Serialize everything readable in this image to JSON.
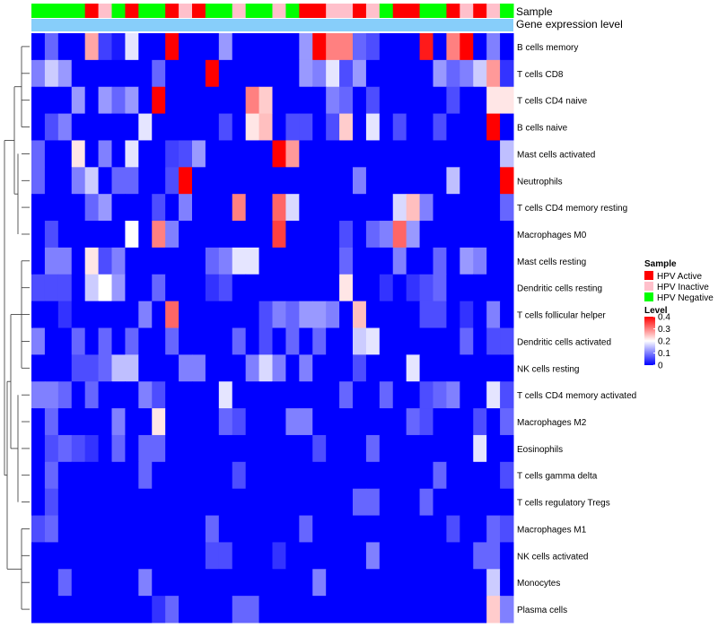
{
  "chart_data": {
    "type": "heatmap",
    "title": "",
    "annotation_rows": [
      "Sample",
      "Gene expression level"
    ],
    "legend_sample": {
      "title": "Sample",
      "entries": [
        {
          "label": "HPV Active",
          "color": "#ff0000"
        },
        {
          "label": "HPV Inactive",
          "color": "#ffc0cb"
        },
        {
          "label": "HPV Negative",
          "color": "#00ff00"
        }
      ]
    },
    "legend_level": {
      "title": "Level",
      "ticks": [
        "0.4",
        "0.3",
        "0.2",
        "0.1",
        "0"
      ],
      "tick_values": [
        0.4,
        0.3,
        0.2,
        0.1,
        0
      ],
      "range": [
        0,
        0.4
      ],
      "colors": {
        "low": "#0000ff",
        "mid": "#ffffff",
        "high": "#ff0000"
      }
    },
    "gene_expression_bar_color": "#87cefa",
    "sample_groups": [
      "N",
      "N",
      "N",
      "N",
      "A",
      "I",
      "N",
      "A",
      "N",
      "N",
      "A",
      "I",
      "A",
      "N",
      "N",
      "I",
      "N",
      "N",
      "I",
      "N",
      "A",
      "A",
      "I",
      "I",
      "A",
      "I",
      "N",
      "A",
      "A",
      "N",
      "N",
      "A",
      "I",
      "A",
      "I",
      "N"
    ],
    "rows": [
      "B cells memory",
      "T cells CD8",
      "T cells CD4 naive",
      "B cells naive",
      "Mast cells activated",
      "Neutrophils",
      "T cells CD4 memory resting",
      "Macrophages M0",
      "Mast cells resting",
      "Dendritic cells resting",
      "T cells follicular helper",
      "Dendritic cells activated",
      "NK cells resting",
      "T cells CD4 memory activated",
      "Macrophages M2",
      "Eosinophils",
      "T cells gamma delta",
      "T cells regulatory  Tregs",
      "Macrophages M1",
      "NK cells activated",
      "Monocytes",
      "Plasma cells"
    ],
    "values": [
      [
        0.0,
        0.08,
        0.0,
        0.0,
        0.27,
        0.05,
        0.02,
        0.18,
        0.0,
        0.0,
        0.4,
        0.0,
        0.0,
        0.0,
        0.12,
        0.0,
        0.0,
        0.0,
        0.0,
        0.0,
        0.12,
        0.4,
        0.3,
        0.3,
        0.08,
        0.06,
        0.0,
        0.0,
        0.0,
        0.38,
        0.0,
        0.3,
        0.4,
        0.0,
        0.1,
        0.0
      ],
      [
        0.1,
        0.16,
        0.12,
        0.0,
        0.0,
        0.0,
        0.0,
        0.0,
        0.0,
        0.08,
        0.0,
        0.0,
        0.0,
        0.4,
        0.0,
        0.0,
        0.0,
        0.0,
        0.0,
        0.0,
        0.12,
        0.1,
        0.18,
        0.06,
        0.12,
        0.0,
        0.0,
        0.0,
        0.0,
        0.0,
        0.12,
        0.08,
        0.1,
        0.16,
        0.28,
        0.04
      ],
      [
        0.0,
        0.0,
        0.0,
        0.12,
        0.0,
        0.12,
        0.08,
        0.12,
        0.0,
        0.4,
        0.0,
        0.0,
        0.0,
        0.0,
        0.0,
        0.0,
        0.3,
        0.24,
        0.0,
        0.0,
        0.0,
        0.0,
        0.1,
        0.08,
        0.0,
        0.06,
        0.0,
        0.0,
        0.0,
        0.0,
        0.0,
        0.06,
        0.0,
        0.0,
        0.22,
        0.22
      ],
      [
        0.0,
        0.06,
        0.1,
        0.0,
        0.0,
        0.0,
        0.0,
        0.0,
        0.18,
        0.0,
        0.0,
        0.0,
        0.0,
        0.0,
        0.06,
        0.0,
        0.22,
        0.25,
        0.0,
        0.06,
        0.06,
        0.0,
        0.06,
        0.24,
        0.0,
        0.18,
        0.0,
        0.06,
        0.0,
        0.0,
        0.06,
        0.0,
        0.0,
        0.0,
        0.4,
        0.0
      ],
      [
        0.08,
        0.0,
        0.0,
        0.22,
        0.0,
        0.1,
        0.0,
        0.18,
        0.0,
        0.0,
        0.05,
        0.06,
        0.12,
        0.0,
        0.0,
        0.0,
        0.0,
        0.0,
        0.4,
        0.28,
        0.0,
        0.0,
        0.0,
        0.0,
        0.0,
        0.0,
        0.0,
        0.0,
        0.0,
        0.0,
        0.0,
        0.0,
        0.0,
        0.0,
        0.0,
        0.15
      ],
      [
        0.08,
        0.0,
        0.0,
        0.1,
        0.16,
        0.0,
        0.08,
        0.08,
        0.0,
        0.0,
        0.06,
        0.4,
        0.0,
        0.0,
        0.0,
        0.0,
        0.0,
        0.0,
        0.0,
        0.0,
        0.0,
        0.0,
        0.0,
        0.0,
        0.1,
        0.0,
        0.0,
        0.0,
        0.0,
        0.0,
        0.0,
        0.15,
        0.0,
        0.0,
        0.0,
        0.4
      ],
      [
        0.0,
        0.0,
        0.0,
        0.0,
        0.08,
        0.12,
        0.0,
        0.0,
        0.0,
        0.06,
        0.0,
        0.1,
        0.0,
        0.0,
        0.0,
        0.3,
        0.0,
        0.0,
        0.32,
        0.17,
        0.0,
        0.0,
        0.0,
        0.0,
        0.0,
        0.0,
        0.0,
        0.17,
        0.25,
        0.1,
        0.0,
        0.0,
        0.0,
        0.0,
        0.0,
        0.08
      ],
      [
        0.0,
        0.06,
        0.0,
        0.0,
        0.0,
        0.0,
        0.0,
        0.2,
        0.0,
        0.3,
        0.1,
        0.0,
        0.0,
        0.0,
        0.0,
        0.0,
        0.0,
        0.0,
        0.35,
        0.0,
        0.0,
        0.0,
        0.0,
        0.06,
        0.0,
        0.08,
        0.1,
        0.32,
        0.12,
        0.0,
        0.0,
        0.0,
        0.0,
        0.0,
        0.0,
        0.0
      ],
      [
        0.0,
        0.1,
        0.1,
        0.0,
        0.22,
        0.06,
        0.1,
        0.0,
        0.0,
        0.0,
        0.0,
        0.0,
        0.0,
        0.08,
        0.1,
        0.18,
        0.18,
        0.0,
        0.0,
        0.0,
        0.0,
        0.0,
        0.0,
        0.08,
        0.0,
        0.0,
        0.0,
        0.1,
        0.0,
        0.0,
        0.08,
        0.0,
        0.12,
        0.1,
        0.0,
        0.0
      ],
      [
        0.06,
        0.06,
        0.06,
        0.0,
        0.16,
        0.2,
        0.12,
        0.0,
        0.0,
        0.08,
        0.0,
        0.0,
        0.0,
        0.04,
        0.06,
        0.0,
        0.0,
        0.0,
        0.0,
        0.0,
        0.0,
        0.0,
        0.0,
        0.22,
        0.0,
        0.0,
        0.04,
        0.0,
        0.04,
        0.06,
        0.08,
        0.0,
        0.0,
        0.0,
        0.0,
        0.0
      ],
      [
        0.0,
        0.0,
        0.04,
        0.0,
        0.0,
        0.0,
        0.0,
        0.0,
        0.1,
        0.0,
        0.32,
        0.0,
        0.0,
        0.0,
        0.0,
        0.0,
        0.0,
        0.06,
        0.1,
        0.08,
        0.12,
        0.12,
        0.1,
        0.0,
        0.25,
        0.0,
        0.0,
        0.0,
        0.0,
        0.06,
        0.06,
        0.0,
        0.04,
        0.0,
        0.1,
        0.0
      ],
      [
        0.1,
        0.0,
        0.0,
        0.08,
        0.0,
        0.08,
        0.0,
        0.08,
        0.0,
        0.0,
        0.08,
        0.0,
        0.0,
        0.0,
        0.0,
        0.08,
        0.0,
        0.06,
        0.0,
        0.08,
        0.0,
        0.08,
        0.0,
        0.0,
        0.16,
        0.18,
        0.0,
        0.0,
        0.0,
        0.0,
        0.0,
        0.0,
        0.08,
        0.0,
        0.06,
        0.06
      ],
      [
        0.0,
        0.0,
        0.0,
        0.06,
        0.06,
        0.08,
        0.15,
        0.15,
        0.0,
        0.0,
        0.0,
        0.1,
        0.1,
        0.0,
        0.0,
        0.0,
        0.1,
        0.17,
        0.1,
        0.0,
        0.1,
        0.0,
        0.0,
        0.0,
        0.06,
        0.0,
        0.0,
        0.0,
        0.18,
        0.0,
        0.0,
        0.0,
        0.0,
        0.0,
        0.0,
        0.0
      ],
      [
        0.1,
        0.1,
        0.08,
        0.0,
        0.08,
        0.0,
        0.0,
        0.0,
        0.1,
        0.06,
        0.0,
        0.0,
        0.0,
        0.0,
        0.18,
        0.0,
        0.0,
        0.0,
        0.0,
        0.0,
        0.0,
        0.0,
        0.0,
        0.08,
        0.0,
        0.0,
        0.08,
        0.0,
        0.0,
        0.06,
        0.08,
        0.1,
        0.0,
        0.0,
        0.18,
        0.06
      ],
      [
        0.0,
        0.08,
        0.0,
        0.0,
        0.0,
        0.0,
        0.1,
        0.0,
        0.0,
        0.22,
        0.0,
        0.0,
        0.0,
        0.0,
        0.08,
        0.06,
        0.0,
        0.0,
        0.0,
        0.1,
        0.1,
        0.0,
        0.0,
        0.0,
        0.0,
        0.0,
        0.0,
        0.0,
        0.08,
        0.06,
        0.0,
        0.0,
        0.0,
        0.06,
        0.0,
        0.08
      ],
      [
        0.0,
        0.06,
        0.08,
        0.06,
        0.04,
        0.0,
        0.08,
        0.0,
        0.08,
        0.08,
        0.0,
        0.0,
        0.0,
        0.0,
        0.0,
        0.0,
        0.0,
        0.0,
        0.0,
        0.0,
        0.0,
        0.06,
        0.0,
        0.0,
        0.0,
        0.08,
        0.0,
        0.0,
        0.0,
        0.0,
        0.0,
        0.0,
        0.0,
        0.18,
        0.0,
        0.0
      ],
      [
        0.0,
        0.08,
        0.0,
        0.0,
        0.0,
        0.0,
        0.0,
        0.0,
        0.08,
        0.0,
        0.0,
        0.0,
        0.0,
        0.0,
        0.0,
        0.06,
        0.0,
        0.0,
        0.0,
        0.0,
        0.0,
        0.0,
        0.0,
        0.0,
        0.0,
        0.0,
        0.0,
        0.0,
        0.0,
        0.0,
        0.08,
        0.0,
        0.0,
        0.0,
        0.0,
        0.06
      ],
      [
        0.0,
        0.06,
        0.0,
        0.0,
        0.0,
        0.0,
        0.0,
        0.0,
        0.0,
        0.0,
        0.0,
        0.0,
        0.0,
        0.0,
        0.0,
        0.0,
        0.0,
        0.0,
        0.0,
        0.0,
        0.0,
        0.0,
        0.0,
        0.0,
        0.08,
        0.08,
        0.0,
        0.0,
        0.0,
        0.08,
        0.0,
        0.0,
        0.0,
        0.0,
        0.0,
        0.0
      ],
      [
        0.06,
        0.08,
        0.0,
        0.0,
        0.0,
        0.0,
        0.0,
        0.0,
        0.0,
        0.0,
        0.0,
        0.0,
        0.0,
        0.08,
        0.0,
        0.0,
        0.0,
        0.0,
        0.0,
        0.0,
        0.08,
        0.0,
        0.0,
        0.0,
        0.0,
        0.0,
        0.0,
        0.0,
        0.0,
        0.0,
        0.0,
        0.06,
        0.0,
        0.0,
        0.08,
        0.06
      ],
      [
        0.0,
        0.0,
        0.0,
        0.0,
        0.0,
        0.0,
        0.0,
        0.0,
        0.0,
        0.0,
        0.0,
        0.0,
        0.0,
        0.06,
        0.06,
        0.0,
        0.0,
        0.0,
        0.04,
        0.0,
        0.0,
        0.0,
        0.0,
        0.0,
        0.0,
        0.1,
        0.0,
        0.0,
        0.0,
        0.0,
        0.0,
        0.0,
        0.0,
        0.08,
        0.08,
        0.0
      ],
      [
        0.0,
        0.0,
        0.08,
        0.0,
        0.0,
        0.0,
        0.0,
        0.0,
        0.1,
        0.0,
        0.0,
        0.0,
        0.0,
        0.0,
        0.0,
        0.0,
        0.0,
        0.0,
        0.0,
        0.0,
        0.0,
        0.1,
        0.0,
        0.0,
        0.0,
        0.0,
        0.0,
        0.0,
        0.0,
        0.0,
        0.0,
        0.0,
        0.0,
        0.0,
        0.16,
        0.0
      ],
      [
        0.0,
        0.0,
        0.0,
        0.0,
        0.0,
        0.0,
        0.0,
        0.0,
        0.0,
        0.04,
        0.08,
        0.0,
        0.0,
        0.0,
        0.0,
        0.08,
        0.08,
        0.0,
        0.0,
        0.0,
        0.0,
        0.0,
        0.0,
        0.0,
        0.0,
        0.0,
        0.0,
        0.0,
        0.0,
        0.0,
        0.0,
        0.0,
        0.0,
        0.0,
        0.24,
        0.1
      ]
    ]
  }
}
